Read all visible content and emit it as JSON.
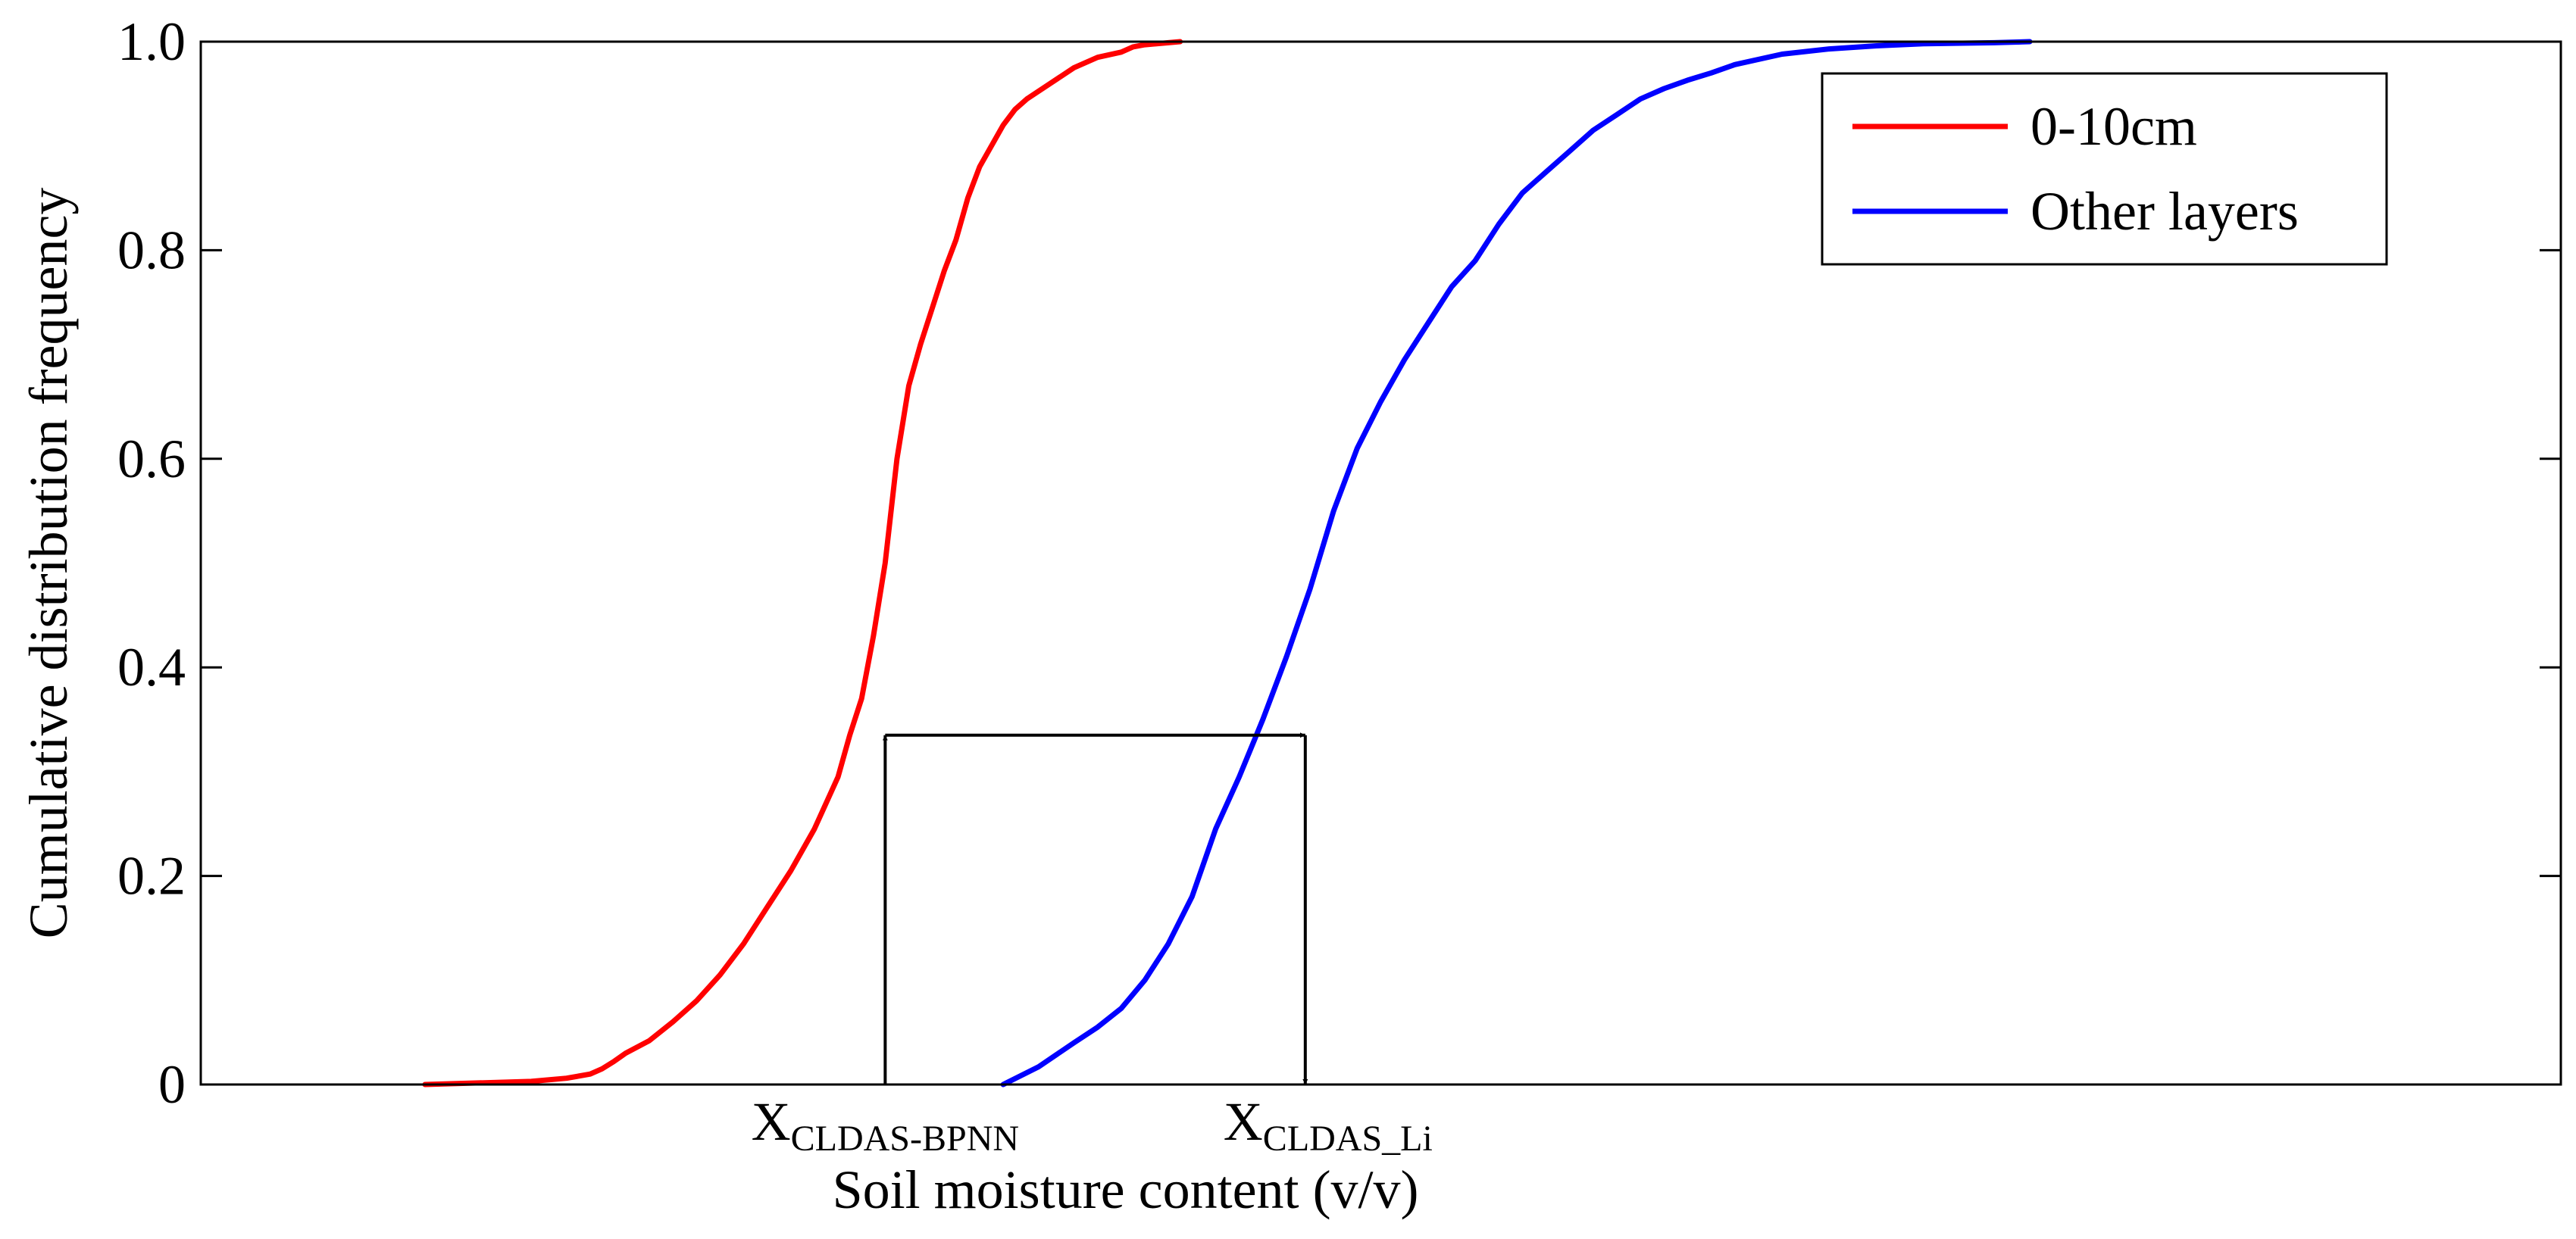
{
  "chart_data": {
    "type": "line",
    "title": "",
    "xlabel": "Soil moisture content (v/v)",
    "ylabel": "Cumulative distribution frequency",
    "xlim": [
      0,
      1
    ],
    "ylim": [
      0,
      1
    ],
    "x_ticks_shown": false,
    "y_ticks": [
      "0",
      "0.2",
      "0.4",
      "0.6",
      "0.8",
      "1.0"
    ],
    "grid": false,
    "legend_position": "top-right",
    "series": [
      {
        "name": "0-10cm",
        "color": "#ff0000",
        "x": [
          0.095,
          0.14,
          0.155,
          0.165,
          0.17,
          0.175,
          0.18,
          0.19,
          0.2,
          0.21,
          0.22,
          0.23,
          0.24,
          0.25,
          0.26,
          0.27,
          0.275,
          0.28,
          0.285,
          0.29,
          0.295,
          0.3,
          0.305,
          0.31,
          0.315,
          0.32,
          0.325,
          0.33,
          0.34,
          0.345,
          0.35,
          0.36,
          0.37,
          0.38,
          0.39,
          0.395,
          0.4,
          0.41,
          0.415
        ],
        "y": [
          0.0,
          0.003,
          0.006,
          0.01,
          0.015,
          0.022,
          0.03,
          0.042,
          0.06,
          0.08,
          0.105,
          0.135,
          0.17,
          0.205,
          0.245,
          0.295,
          0.335,
          0.37,
          0.43,
          0.5,
          0.6,
          0.67,
          0.71,
          0.745,
          0.78,
          0.81,
          0.85,
          0.88,
          0.92,
          0.935,
          0.945,
          0.96,
          0.975,
          0.985,
          0.99,
          0.995,
          0.997,
          0.999,
          1.0
        ]
      },
      {
        "name": "Other layers",
        "color": "#0000ff",
        "x": [
          0.34,
          0.355,
          0.37,
          0.38,
          0.39,
          0.4,
          0.41,
          0.42,
          0.43,
          0.44,
          0.45,
          0.46,
          0.47,
          0.48,
          0.49,
          0.5,
          0.51,
          0.52,
          0.53,
          0.54,
          0.55,
          0.56,
          0.57,
          0.58,
          0.59,
          0.6,
          0.61,
          0.62,
          0.63,
          0.64,
          0.65,
          0.67,
          0.69,
          0.71,
          0.73,
          0.76,
          0.775
        ],
        "y": [
          0.0,
          0.017,
          0.04,
          0.055,
          0.073,
          0.1,
          0.135,
          0.18,
          0.245,
          0.295,
          0.35,
          0.41,
          0.475,
          0.55,
          0.61,
          0.655,
          0.695,
          0.73,
          0.765,
          0.79,
          0.825,
          0.855,
          0.875,
          0.895,
          0.915,
          0.93,
          0.945,
          0.955,
          0.963,
          0.97,
          0.978,
          0.988,
          0.993,
          0.996,
          0.998,
          0.999,
          1.0
        ]
      }
    ],
    "annotations": {
      "level_y": 0.335,
      "x_bpnn": 0.29,
      "x_li": 0.468,
      "label_bpnn": {
        "main": "X",
        "sub": "CLDAS-BPNN"
      },
      "label_li": {
        "main": "X",
        "sub": "CLDAS_Li"
      }
    }
  }
}
